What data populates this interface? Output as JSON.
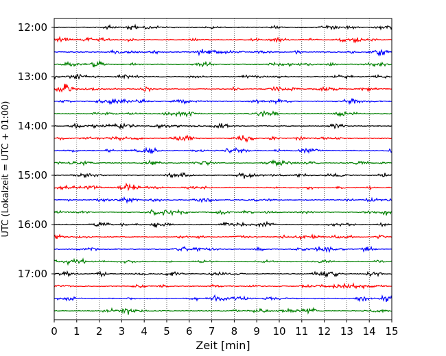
{
  "chart_data": {
    "type": "line",
    "title": "",
    "xlabel": "Zeit  [min]",
    "ylabel": "UTC (Lokalzeit = UTC + 01:00)",
    "xlim": [
      0,
      15
    ],
    "x_ticks": [
      "0",
      "1",
      "2",
      "3",
      "4",
      "5",
      "6",
      "7",
      "8",
      "9",
      "10",
      "11",
      "12",
      "13",
      "14",
      "15"
    ],
    "y_tick_labels": [
      "12:00",
      "13:00",
      "14:00",
      "15:00",
      "16:00",
      "17:00"
    ],
    "grid": "vertical dotted lines at each minute",
    "trace_interval_minutes": 15,
    "start_time": "12:00",
    "trace_count": 24,
    "color_cycle": [
      "#000000",
      "#ff0000",
      "#0000ff",
      "#008000"
    ]
  }
}
